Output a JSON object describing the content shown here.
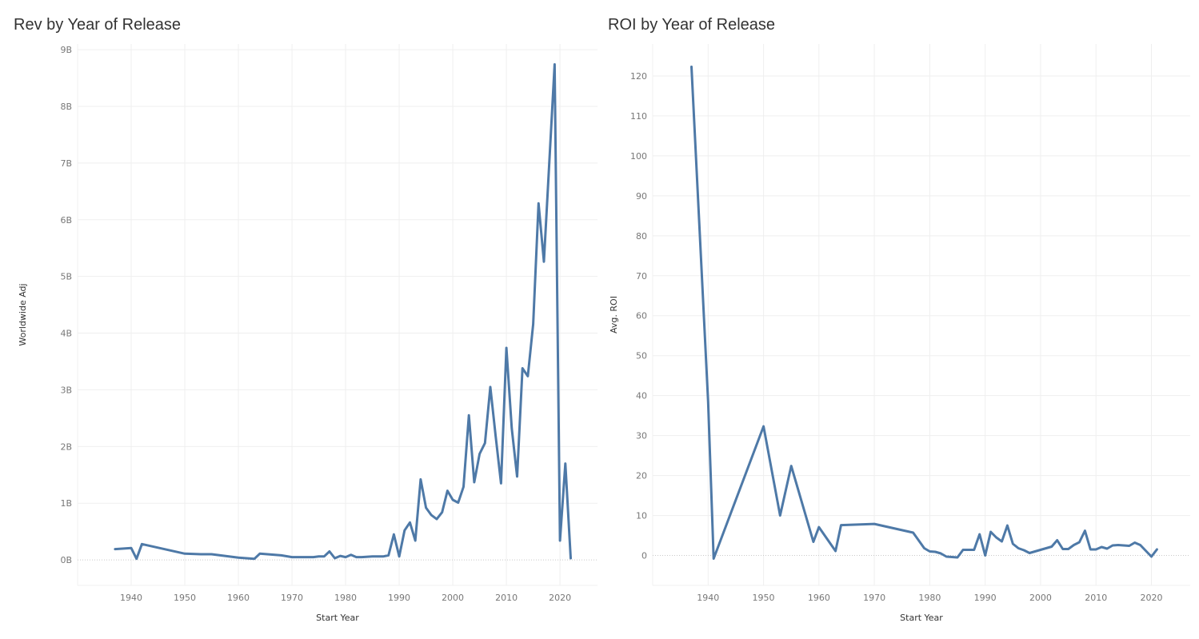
{
  "chart_data": [
    {
      "type": "line",
      "title": "Rev by Year of Release",
      "xlabel": "Start Year",
      "ylabel": "Worldwide Adj",
      "xlim": [
        1930,
        2027
      ],
      "ylim": [
        -0.45,
        9.1
      ],
      "grid": true,
      "x_ticks": [
        1940,
        1950,
        1960,
        1970,
        1980,
        1990,
        2000,
        2010,
        2020
      ],
      "y_ticks": [
        0,
        1,
        2,
        3,
        4,
        5,
        6,
        7,
        8,
        9
      ],
      "y_tick_labels": [
        "0B",
        "1B",
        "2B",
        "3B",
        "4B",
        "5B",
        "6B",
        "7B",
        "8B",
        "9B"
      ],
      "color": "#4e79a7",
      "series": [
        {
          "x": [
            1937,
            1940,
            1941,
            1942,
            1950,
            1953,
            1955,
            1960,
            1963,
            1964,
            1968,
            1970,
            1974,
            1975,
            1976,
            1977,
            1978,
            1979,
            1980,
            1981,
            1982,
            1983,
            1985,
            1987,
            1988,
            1989,
            1990,
            1991,
            1992,
            1993,
            1994,
            1995,
            1996,
            1997,
            1998,
            1999,
            2000,
            2001,
            2002,
            2003,
            2004,
            2005,
            2006,
            2007,
            2008,
            2009,
            2010,
            2011,
            2012,
            2013,
            2014,
            2015,
            2016,
            2017,
            2019,
            2020,
            2021,
            2022
          ],
          "values": [
            0.19,
            0.21,
            0.02,
            0.28,
            0.11,
            0.1,
            0.1,
            0.04,
            0.02,
            0.11,
            0.08,
            0.05,
            0.05,
            0.06,
            0.06,
            0.15,
            0.03,
            0.07,
            0.05,
            0.09,
            0.05,
            0.05,
            0.06,
            0.06,
            0.08,
            0.45,
            0.06,
            0.52,
            0.66,
            0.34,
            1.42,
            0.92,
            0.79,
            0.72,
            0.84,
            1.22,
            1.06,
            1.01,
            1.29,
            2.55,
            1.37,
            1.87,
            2.06,
            3.05,
            2.18,
            1.35,
            3.74,
            2.32,
            1.47,
            3.38,
            3.24,
            4.16,
            6.29,
            5.26,
            8.74,
            0.34,
            1.7,
            0.03
          ]
        }
      ]
    },
    {
      "type": "line",
      "title": "ROI by Year of Release",
      "xlabel": "Start Year",
      "ylabel": "Avg. ROI",
      "xlim": [
        1930,
        2027
      ],
      "ylim": [
        -7.5,
        128
      ],
      "grid": true,
      "x_ticks": [
        1940,
        1950,
        1960,
        1970,
        1980,
        1990,
        2000,
        2010,
        2020
      ],
      "y_ticks": [
        0,
        10,
        20,
        30,
        40,
        50,
        60,
        70,
        80,
        90,
        100,
        110,
        120
      ],
      "y_tick_labels": [
        "0",
        "10",
        "20",
        "30",
        "40",
        "50",
        "60",
        "70",
        "80",
        "90",
        "100",
        "110",
        "120"
      ],
      "color": "#4e79a7",
      "series": [
        {
          "x": [
            1937,
            1940,
            1941,
            1950,
            1953,
            1955,
            1959,
            1960,
            1963,
            1964,
            1970,
            1977,
            1979,
            1980,
            1981,
            1982,
            1983,
            1984,
            1985,
            1986,
            1987,
            1988,
            1989,
            1990,
            1991,
            1992,
            1993,
            1994,
            1995,
            1996,
            1997,
            1998,
            2000,
            2002,
            2003,
            2004,
            2005,
            2006,
            2007,
            2008,
            2009,
            2010,
            2011,
            2012,
            2013,
            2014,
            2015,
            2016,
            2017,
            2018,
            2020,
            2021
          ],
          "values": [
            122.3,
            38.5,
            -0.8,
            32.3,
            10.0,
            22.4,
            3.4,
            7.1,
            1.1,
            7.6,
            7.9,
            5.7,
            1.8,
            1.0,
            0.9,
            0.5,
            -0.3,
            -0.4,
            -0.5,
            1.4,
            1.4,
            1.4,
            5.3,
            0.0,
            5.9,
            4.5,
            3.5,
            7.5,
            2.9,
            1.8,
            1.3,
            0.6,
            1.4,
            2.2,
            3.8,
            1.6,
            1.6,
            2.6,
            3.3,
            6.2,
            1.5,
            1.5,
            2.1,
            1.7,
            2.5,
            2.6,
            2.5,
            2.4,
            3.2,
            2.6,
            -0.3,
            1.5
          ]
        }
      ]
    }
  ]
}
